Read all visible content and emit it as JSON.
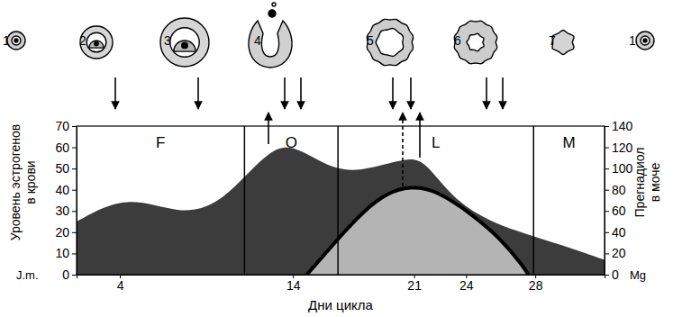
{
  "chart_data": {
    "type": "area",
    "x_label": "Дни цикла",
    "y_label": [
      "Уровень эстрогенов",
      "в крови"
    ],
    "y2_label": [
      "Прегнадиол",
      "в моче"
    ],
    "y_unit": "J.m.",
    "y2_unit": "Mg",
    "xlim": [
      1.5,
      32
    ],
    "xticks": [
      4,
      14,
      21,
      24,
      28
    ],
    "ylim": [
      0,
      70
    ],
    "yticks": [
      0,
      10,
      20,
      30,
      40,
      50,
      60,
      70
    ],
    "y2lim": [
      0,
      140
    ],
    "y2ticks": [
      0,
      20,
      40,
      60,
      80,
      100,
      120,
      140
    ],
    "phases": [
      "F",
      "O",
      "L",
      "M"
    ],
    "phase_bounds": [
      11.2,
      16.6,
      27.9
    ],
    "stages": [
      "1",
      "2",
      "3",
      "4",
      "5",
      "6",
      "7",
      "1"
    ],
    "series": [
      {
        "type": "area",
        "color": "#3c3c3c",
        "x": [
          1.5,
          4.4,
          7.5,
          9.6,
          11.2,
          13.0,
          14.3,
          16.6,
          18.5,
          20.6,
          21.6,
          23.2,
          25.3,
          27.9,
          29.9,
          32
        ],
        "values": [
          25,
          38,
          28,
          33,
          46,
          61,
          60,
          48,
          50,
          55,
          54,
          36,
          25,
          18,
          13,
          7
        ]
      },
      {
        "type": "area",
        "color": "#b4b4b4",
        "axis": "y2",
        "x": [
          14.8,
          16.4,
          18.0,
          19.5,
          20.8,
          22.1,
          24.2,
          26.0,
          27.3,
          27.6
        ],
        "values": [
          0,
          30,
          59,
          78,
          83,
          81,
          59,
          34,
          8,
          0
        ]
      }
    ]
  }
}
